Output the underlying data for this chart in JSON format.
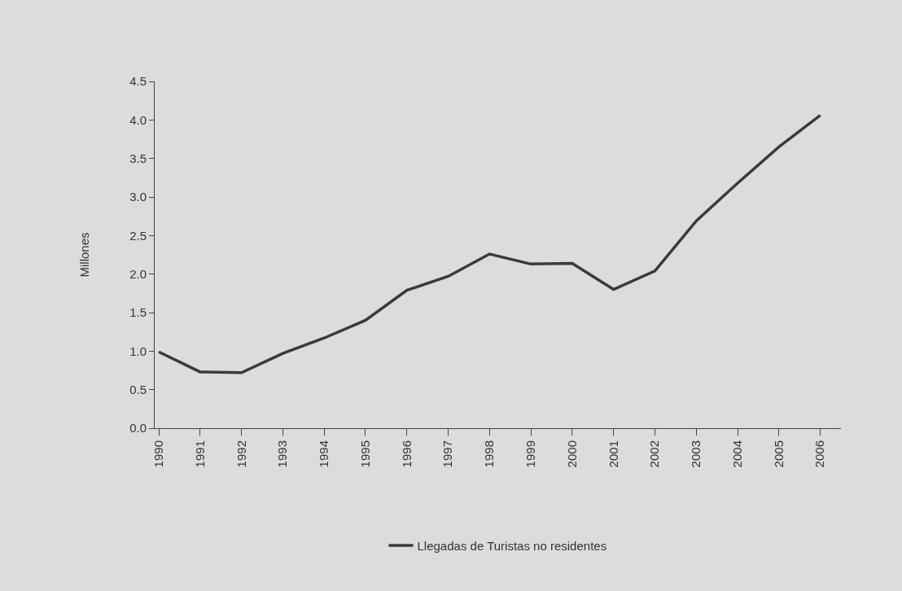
{
  "chart_data": {
    "type": "line",
    "ylabel": "Millones",
    "categories": [
      "1990",
      "1991",
      "1992",
      "1993",
      "1994",
      "1995",
      "1996",
      "1997",
      "1998",
      "1999",
      "2000",
      "2001",
      "2002",
      "2003",
      "2004",
      "2005",
      "2006"
    ],
    "series": [
      {
        "name": "Llegadas de Turistas no residentes",
        "color": "#3a3a3a",
        "values": [
          0.99,
          0.73,
          0.72,
          0.97,
          1.17,
          1.4,
          1.79,
          1.97,
          2.26,
          2.13,
          2.14,
          1.8,
          2.04,
          2.69,
          3.18,
          3.65,
          4.06
        ]
      }
    ],
    "ylim": [
      0,
      4.5
    ],
    "yticks": [
      {
        "value": 0,
        "label": "0.0"
      },
      0.5,
      {
        "value": 1,
        "label": "1.0"
      },
      1.5,
      {
        "value": 2,
        "label": "2.0"
      },
      2.5,
      {
        "value": 3,
        "label": "3.0"
      },
      3.5,
      {
        "value": 4,
        "label": "4.0"
      },
      4.5
    ],
    "grid": false,
    "legend": "bottom",
    "marker": "none",
    "line_style": "solid"
  }
}
